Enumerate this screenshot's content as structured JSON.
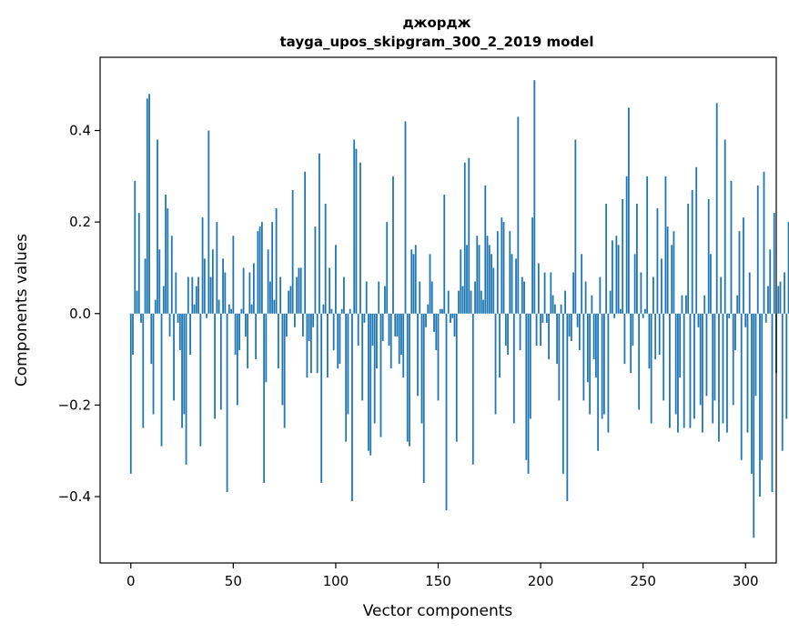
{
  "chart_data": {
    "type": "bar",
    "title": "джордж",
    "subtitle": "tayga_upos_skipgram_300_2_2019 model",
    "xlabel": "Vector components",
    "ylabel": "Components values",
    "xlim": [
      -15,
      315
    ],
    "ylim": [
      -0.545,
      0.56
    ],
    "x_ticks": [
      0,
      50,
      100,
      150,
      200,
      250,
      300
    ],
    "y_ticks": [
      -0.4,
      -0.2,
      0.0,
      0.2,
      0.4
    ],
    "y_tick_labels": [
      "−0.4",
      "−0.2",
      "0.0",
      "0.2",
      "0.4"
    ],
    "x_tick_labels": [
      "0",
      "50",
      "100",
      "150",
      "200",
      "250",
      "300"
    ],
    "grid": false,
    "bar_color": "#1f77b4",
    "x_start": 0,
    "values": [
      -0.35,
      -0.09,
      0.29,
      0.05,
      0.22,
      -0.02,
      -0.25,
      0.12,
      0.47,
      0.48,
      -0.11,
      -0.22,
      0.03,
      0.38,
      0.14,
      -0.29,
      0.06,
      0.26,
      0.23,
      -0.05,
      0.17,
      -0.19,
      0.09,
      -0.02,
      -0.08,
      -0.25,
      -0.22,
      -0.33,
      0.08,
      -0.09,
      0.08,
      0.02,
      0.06,
      0.08,
      -0.29,
      0.21,
      0.12,
      -0.01,
      0.4,
      0.08,
      0.14,
      -0.23,
      0.2,
      0.03,
      -0.21,
      0.12,
      0.09,
      -0.39,
      0.02,
      0.01,
      0.17,
      -0.09,
      -0.2,
      -0.08,
      0.01,
      0.1,
      -0.05,
      -0.12,
      0.09,
      0.02,
      0.11,
      -0.1,
      0.18,
      0.19,
      0.2,
      -0.37,
      -0.15,
      0.14,
      0.07,
      0.2,
      0.03,
      0.23,
      -0.12,
      0.08,
      -0.2,
      -0.25,
      -0.05,
      0.05,
      0.06,
      0.27,
      -0.03,
      0.08,
      0.1,
      0.1,
      -0.05,
      0.31,
      -0.14,
      -0.06,
      -0.13,
      -0.03,
      0.19,
      -0.13,
      0.35,
      -0.37,
      0.02,
      0.24,
      -0.14,
      0.1,
      0.01,
      -0.08,
      0.15,
      -0.12,
      -0.11,
      0.01,
      0.08,
      -0.28,
      -0.22,
      0.01,
      -0.41,
      0.38,
      0.36,
      -0.07,
      0.33,
      -0.19,
      -0.02,
      0.07,
      -0.3,
      -0.31,
      -0.07,
      -0.24,
      -0.12,
      0.07,
      -0.27,
      -0.06,
      0.06,
      0.2,
      -0.07,
      -0.12,
      0.3,
      -0.05,
      -0.05,
      -0.11,
      -0.09,
      -0.14,
      0.42,
      -0.28,
      -0.29,
      0.14,
      0.13,
      0.15,
      -0.18,
      0.07,
      -0.24,
      -0.37,
      -0.03,
      0.02,
      0.13,
      0.07,
      -0.04,
      -0.08,
      -0.19,
      0.01,
      0.01,
      0.26,
      -0.43,
      0.05,
      -0.02,
      -0.01,
      -0.05,
      -0.28,
      0.05,
      0.14,
      0.06,
      0.33,
      0.15,
      0.34,
      0.05,
      -0.33,
      0.07,
      0.17,
      0.15,
      0.05,
      0.03,
      0.28,
      0.17,
      0.15,
      0.13,
      0.1,
      -0.22,
      0.18,
      -0.14,
      0.21,
      0.2,
      -0.07,
      -0.09,
      0.18,
      0.13,
      -0.24,
      0.12,
      0.43,
      -0.08,
      0.08,
      0.07,
      -0.32,
      -0.35,
      -0.23,
      0.21,
      0.51,
      -0.07,
      0.11,
      -0.07,
      -0.02,
      0.09,
      -0.02,
      -0.1,
      0.09,
      0.04,
      0.02,
      -0.11,
      -0.19,
      0.02,
      -0.35,
      0.05,
      -0.41,
      -0.05,
      -0.06,
      0.09,
      0.38,
      -0.03,
      -0.08,
      0.13,
      -0.19,
      0.07,
      -0.15,
      -0.22,
      0.04,
      -0.1,
      -0.14,
      -0.3,
      0.08,
      -0.23,
      -0.22,
      0.24,
      -0.26,
      0.05,
      0.16,
      -0.01,
      0.17,
      0.15,
      0.01,
      0.25,
      -0.11,
      0.3,
      0.45,
      -0.13,
      -0.07,
      0.13,
      0.24,
      -0.21,
      0.09,
      -0.01,
      0.01,
      0.3,
      -0.12,
      -0.24,
      0.08,
      -0.1,
      0.23,
      -0.09,
      0.12,
      -0.19,
      0.3,
      0.19,
      -0.25,
      0.15,
      0.18,
      -0.22,
      -0.26,
      -0.14,
      0.04,
      -0.25,
      0.04,
      0.24,
      -0.25,
      0.27,
      -0.23,
      0.32,
      -0.03,
      -0.2,
      -0.26,
      0.04,
      -0.18,
      0.25,
      0.13,
      -0.24,
      -0.19,
      0.46,
      -0.28,
      0.08,
      -0.24,
      0.38,
      -0.26,
      -0.01,
      0.29,
      -0.2,
      -0.08,
      0.04,
      0.18,
      -0.32,
      0.21,
      -0.03,
      -0.26,
      0.09,
      -0.35,
      -0.49,
      -0.18,
      0.28,
      -0.4,
      -0.32,
      0.31,
      -0.02,
      0.06,
      0.14,
      -0.39,
      0.22,
      -0.13,
      0.06,
      0.07,
      -0.3,
      0.09,
      -0.23,
      0.2,
      -0.23
    ]
  }
}
